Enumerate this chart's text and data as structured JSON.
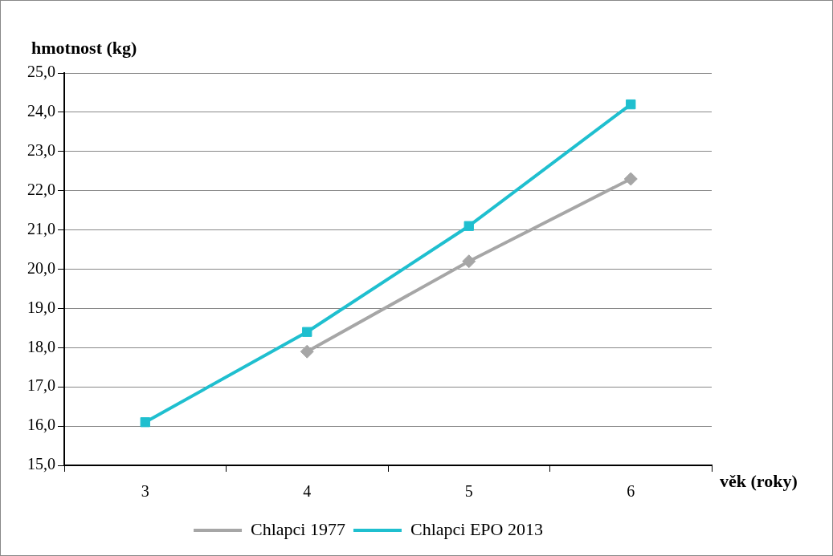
{
  "chart_data": {
    "type": "line",
    "xlabel": "věk (roky)",
    "ylabel": "hmotnost (kg)",
    "categories": [
      "3",
      "4",
      "5",
      "6"
    ],
    "series": [
      {
        "name": "Chlapci 1977",
        "color": "#a6a6a6",
        "marker": "diamond",
        "values": [
          null,
          17.9,
          20.2,
          22.3
        ]
      },
      {
        "name": "Chlapci EPO 2013",
        "color": "#1fbfcf",
        "marker": "square",
        "values": [
          16.1,
          18.4,
          21.1,
          24.2
        ]
      }
    ],
    "ylim": [
      15,
      25
    ],
    "yticks": [
      {
        "value": 15,
        "label": "15,0"
      },
      {
        "value": 16,
        "label": "16,0"
      },
      {
        "value": 17,
        "label": "17,0"
      },
      {
        "value": 18,
        "label": "18,0"
      },
      {
        "value": 19,
        "label": "19,0"
      },
      {
        "value": 20,
        "label": "20,0"
      },
      {
        "value": 21,
        "label": "21,0"
      },
      {
        "value": 22,
        "label": "22,0"
      },
      {
        "value": 23,
        "label": "23,0"
      },
      {
        "value": 24,
        "label": "24,0"
      },
      {
        "value": 25,
        "label": "25,0"
      }
    ],
    "grid": "y",
    "legend": "bottom"
  }
}
